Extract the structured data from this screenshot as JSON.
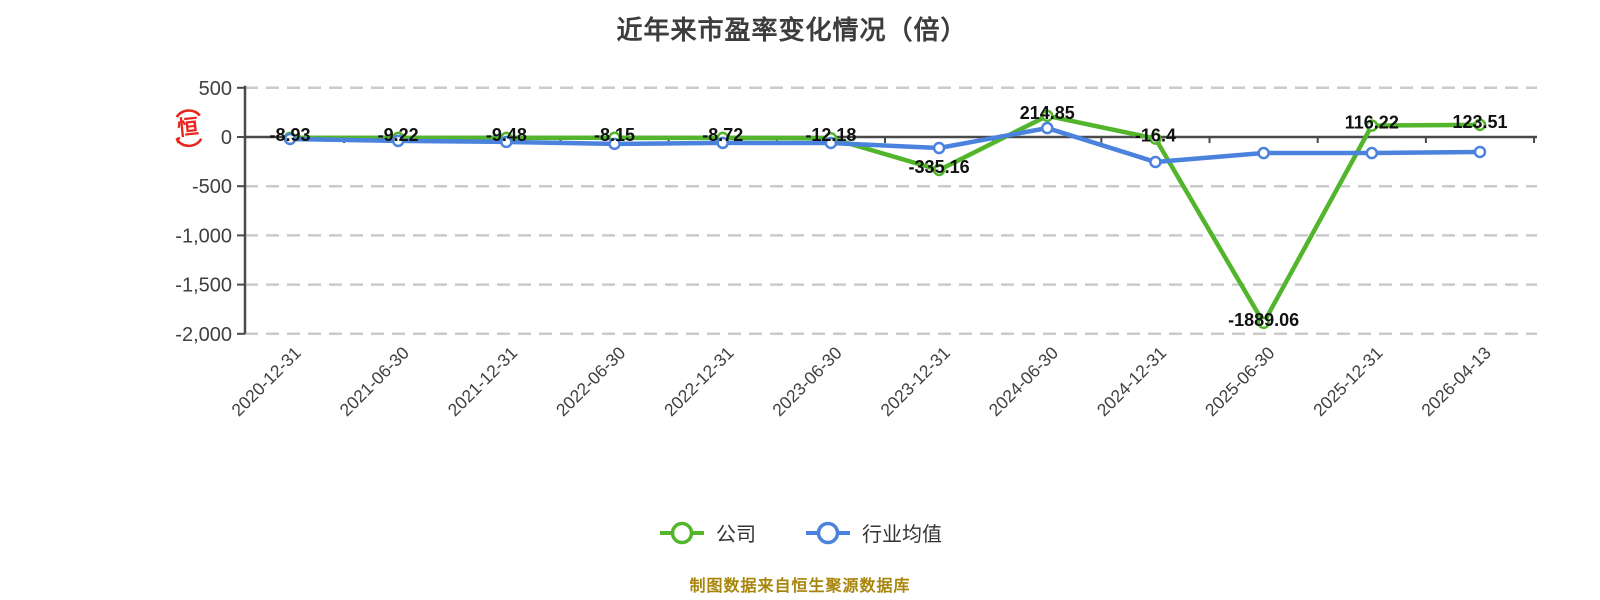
{
  "title": "近年来市盈率变化情况（倍）",
  "source_note": "制图数据来自恒生聚源数据库",
  "stamp": {
    "char": "恒"
  },
  "colors": {
    "company": "#52b52c",
    "industry": "#4a82dd",
    "grid": "#cbcbcb",
    "axis": "#4a4a4a",
    "tick_label": "#404040",
    "data_label": "#111111",
    "title": "#3d3d3d",
    "source": "#a8860d",
    "stamp": "#e8241c",
    "marker_fill": "#ffffff"
  },
  "legend": {
    "items": [
      {
        "label": "公司",
        "series": "company"
      },
      {
        "label": "行业均值",
        "series": "industry"
      }
    ]
  },
  "chart_data": {
    "type": "line",
    "title": "近年来市盈率变化情况（倍）",
    "categories": [
      "2020-12-31",
      "2021-06-30",
      "2021-12-31",
      "2022-06-30",
      "2022-12-31",
      "2023-06-30",
      "2023-12-31",
      "2024-06-30",
      "2024-12-31",
      "2025-06-30",
      "2025-12-31",
      "2026-04-13"
    ],
    "series": [
      {
        "name": "公司",
        "color_key": "company",
        "values": [
          -8.93,
          -9.22,
          -9.48,
          -8.15,
          -8.72,
          -12.18,
          -335.16,
          214.85,
          -16.4,
          -1889.06,
          116.22,
          123.51
        ],
        "point_labels": [
          "-8.93",
          "-9.22",
          "-9.48",
          "-8.15",
          "-8.72",
          "-12.18",
          "-335.16",
          "214.85",
          "-16.4",
          "-1889.06",
          "116.22",
          "123.51"
        ]
      },
      {
        "name": "行业均值",
        "color_key": "industry",
        "values": [
          -20,
          -40,
          -50,
          -70,
          -60,
          -61,
          -112,
          91,
          -254,
          -163,
          -163,
          -152
        ],
        "point_labels": null
      }
    ],
    "yticks": {
      "values": [
        500,
        0,
        -500,
        -1000,
        -1500,
        -2000
      ],
      "labels": [
        "500",
        "0",
        "-500",
        "-1,000",
        "-1,500",
        "-2,000"
      ]
    },
    "ylim": [
      -2000,
      500
    ],
    "xlabel": "",
    "ylabel": "",
    "grid": "horizontal-dashed",
    "legend_position": "bottom"
  }
}
